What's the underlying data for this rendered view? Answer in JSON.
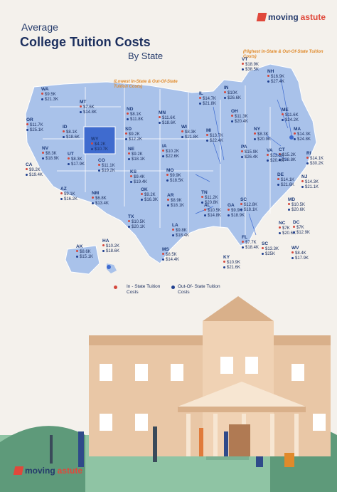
{
  "brand_top": {
    "name_a": "moving",
    "name_b": "astute"
  },
  "brand_bottom": {
    "name_a": "moving",
    "name_b": "astute"
  },
  "title": {
    "line1": "Average",
    "line2": "College Tuition Costs",
    "line3": "By State"
  },
  "notes": {
    "highest": "(Highest In-State & Out-Of-State Tuition Costs)",
    "lowest": "(Lowest In-State & Out-Of-State Tuition Costs)"
  },
  "legend": {
    "in_state": "In - State Tuition Costs",
    "out_state": "Out-Of- State Tuition Costs"
  },
  "colors": {
    "in_state": "#d4473b",
    "out_state": "#1f3f8f",
    "map": "#a9c2ea",
    "highlight": "#3f6bcf",
    "title": "#1c2f5e",
    "note": "#e08a2b"
  },
  "states": [
    {
      "ab": "WA",
      "in": "$9.5K",
      "out": "$21.3K"
    },
    {
      "ab": "OR",
      "in": "$11.7K",
      "out": "$25.1K"
    },
    {
      "ab": "MT",
      "in": "$7.6K",
      "out": "$14.8K"
    },
    {
      "ab": "ID",
      "in": "$8.1K",
      "out": "$18.6K"
    },
    {
      "ab": "WY",
      "in": "$4.2K",
      "out": "$10.7K"
    },
    {
      "ab": "ND",
      "in": "$8.1K",
      "out": "$11.8K"
    },
    {
      "ab": "SD",
      "in": "$9.2K",
      "out": "$12.2K"
    },
    {
      "ab": "MN",
      "in": "$11.6K",
      "out": "$18.6K"
    },
    {
      "ab": "NV",
      "in": "$8.3K",
      "out": "$18.9K"
    },
    {
      "ab": "UT",
      "in": "$8.3K",
      "out": "$17.9K"
    },
    {
      "ab": "CO",
      "in": "$11.1K",
      "out": "$19.2K"
    },
    {
      "ab": "NE",
      "in": "$9.2K",
      "out": "$18.1K"
    },
    {
      "ab": "IA",
      "in": "$10.2K",
      "out": "$22.6K"
    },
    {
      "ab": "WI",
      "in": "$8.3K",
      "out": "$21.8K"
    },
    {
      "ab": "IL",
      "in": "$14.7K",
      "out": "$21.8K"
    },
    {
      "ab": "IN",
      "in": "$10K",
      "out": "$26.6K"
    },
    {
      "ab": "MI",
      "in": "$13.7K",
      "out": "$22.4K"
    },
    {
      "ab": "OH",
      "in": "$11.3K",
      "out": "$20.4K"
    },
    {
      "ab": "CA",
      "in": "$9.2K",
      "out": "$19.4K"
    },
    {
      "ab": "AZ",
      "in": "$9.1K",
      "out": "$16.2K"
    },
    {
      "ab": "NM",
      "in": "$6.8K",
      "out": "$13.4K"
    },
    {
      "ab": "KS",
      "in": "$9.4K",
      "out": "$19.4K"
    },
    {
      "ab": "MO",
      "in": "$9.9K",
      "out": "$18.5K"
    },
    {
      "ab": "OK",
      "in": "$9.2K",
      "out": "$16.3K"
    },
    {
      "ab": "AR",
      "in": "$8.9K",
      "out": "$18.1K"
    },
    {
      "ab": "TX",
      "in": "$10.5K",
      "out": "$20.1K"
    },
    {
      "ab": "TN",
      "in": "$11.2K",
      "out": "$20.8K"
    },
    {
      "ab": "AL",
      "in": "$10.5K",
      "out": "$14.8K"
    },
    {
      "ab": "GA",
      "in": "$9.9K",
      "out": "$18.9K"
    },
    {
      "ab": "SC",
      "in": "$12.8K",
      "out": "$18.1K"
    },
    {
      "ab": "LA",
      "in": "$9.8K",
      "out": "$18.4K"
    },
    {
      "ab": "MS",
      "in": "$8.5K",
      "out": "$14.4K"
    },
    {
      "ab": "KY",
      "in": "$10.9K",
      "out": "$21.6K"
    },
    {
      "ab": "FL",
      "in": "$7.7K",
      "out": "$18.4K"
    },
    {
      "ab": "AK",
      "in": "$8.6K",
      "out": "$15.1K"
    },
    {
      "ab": "HA",
      "in": "$10.2K",
      "out": "$18.6K"
    },
    {
      "ab": "VT",
      "in": "$18.9K",
      "out": "$38.5K"
    },
    {
      "ab": "NH",
      "in": "$16.9K",
      "out": "$27.4K"
    },
    {
      "ab": "ME",
      "in": "$11.6K",
      "out": "$24.2K"
    },
    {
      "ab": "NY",
      "in": "$8.3K",
      "out": "$20.9K"
    },
    {
      "ab": "MA",
      "in": "$14.3K",
      "out": "$24.8K"
    },
    {
      "ab": "PA",
      "in": "$15.9K",
      "out": "$26.4K"
    },
    {
      "ab": "CT",
      "in": "$15.2K",
      "out": "$28.8K"
    },
    {
      "ab": "RI",
      "in": "$14.1K",
      "out": "$30.2K"
    },
    {
      "ab": "VA",
      "in": "$13.8K",
      "out": "$20.4K"
    },
    {
      "ab": "DE",
      "in": "$14.1K",
      "out": "$21.6K"
    },
    {
      "ab": "NJ",
      "in": "$14.3K",
      "out": "$21.1K"
    },
    {
      "ab": "MD",
      "in": "$10.5K",
      "out": "$20.6K"
    },
    {
      "ab": "NC",
      "in": "$7K",
      "out": "$20.6K"
    },
    {
      "ab": "DC",
      "in": "$7K",
      "out": "$12.9K"
    },
    {
      "ab": "SC",
      "in": "$13.3K",
      "out": "$25K"
    },
    {
      "ab": "WV",
      "in": "$8.4K",
      "out": "$17.9K"
    }
  ]
}
